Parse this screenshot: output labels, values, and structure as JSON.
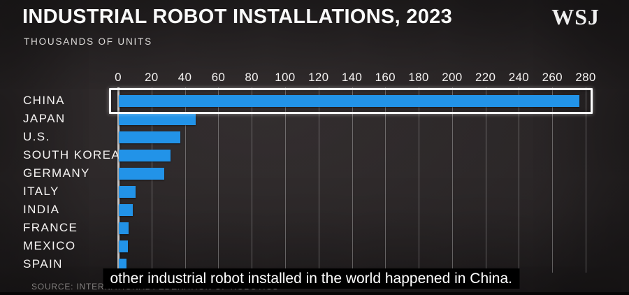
{
  "header": {
    "title": "INDUSTRIAL ROBOT INSTALLATIONS, 2023",
    "subtitle": "THOUSANDS OF UNITS",
    "logo": "WSJ"
  },
  "chart_data": {
    "type": "bar",
    "orientation": "horizontal",
    "title": "INDUSTRIAL ROBOT INSTALLATIONS, 2023",
    "units_label": "THOUSANDS OF UNITS",
    "categories": [
      "CHINA",
      "JAPAN",
      "U.S.",
      "SOUTH KOREA",
      "GERMANY",
      "ITALY",
      "INDIA",
      "FRANCE",
      "MEXICO",
      "SPAIN"
    ],
    "values": [
      276,
      46,
      37,
      31,
      27,
      10,
      8.5,
      6,
      5.5,
      4.8
    ],
    "xlim": [
      0,
      280
    ],
    "x_ticks": [
      0,
      20,
      40,
      60,
      80,
      100,
      120,
      140,
      160,
      180,
      200,
      220,
      240,
      260,
      280
    ],
    "grid": true,
    "legend": "none",
    "highlighted_category": "CHINA",
    "bar_color": "#2293e8"
  },
  "caption": {
    "text": "other industrial robot installed in the world happened in China."
  },
  "source": {
    "text": "SOURCE: INTERNATIONAL FEDERATION OF ROBOTICS"
  },
  "colors": {
    "background": "#242021",
    "bar": "#2293e8",
    "text": "#f5f3f2",
    "gridline": "rgba(255,255,255,0.30)",
    "highlight_border": "#ffffff",
    "caption_bg": "#000000"
  }
}
